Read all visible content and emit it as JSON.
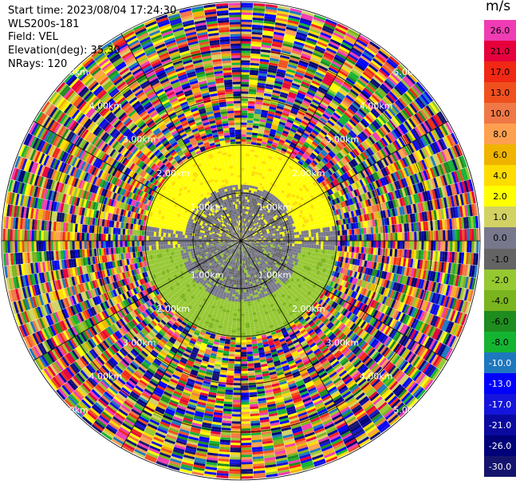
{
  "info": {
    "start_time": "Start time: 2023/08/04 17:24:30",
    "site": "WLS200s-181",
    "field": "Field: VEL",
    "elevation": "Elevation(deg): 35.30",
    "nrays": "NRays: 120"
  },
  "chart_data": {
    "type": "polar-ppi",
    "field": "VEL",
    "n_rays": 120,
    "range_rings_km": [
      1.0,
      2.0,
      3.0,
      4.0,
      5.0
    ],
    "ring_labels": [
      "1.00km",
      "2.00km",
      "3.00km",
      "4.00km",
      "5.00km"
    ],
    "valid_data_max_range_km": 2.0,
    "colorbar": {
      "unit": "m/s",
      "levels": [
        {
          "label": "26.0",
          "color": "#f03cb4"
        },
        {
          "label": "21.0",
          "color": "#e6003c"
        },
        {
          "label": "17.0",
          "color": "#f02814"
        },
        {
          "label": "13.0",
          "color": "#f0501e"
        },
        {
          "label": "10.0",
          "color": "#f07846"
        },
        {
          "label": "8.0",
          "color": "#ffa050"
        },
        {
          "label": "6.0",
          "color": "#f0b400"
        },
        {
          "label": "4.0",
          "color": "#ffdc00"
        },
        {
          "label": "2.0",
          "color": "#ffff00"
        },
        {
          "label": "1.0",
          "color": "#d2d264"
        },
        {
          "label": "0.0",
          "color": "#78788c"
        },
        {
          "label": "-1.0",
          "color": "#646464"
        },
        {
          "label": "-2.0",
          "color": "#96c832"
        },
        {
          "label": "-4.0",
          "color": "#7ab41e"
        },
        {
          "label": "-6.0",
          "color": "#1e8c1e"
        },
        {
          "label": "-8.0",
          "color": "#14b432"
        },
        {
          "label": "-10.0",
          "color": "#1e78be"
        },
        {
          "label": "-13.0",
          "color": "#0000ff"
        },
        {
          "label": "-17.0",
          "color": "#1414dc"
        },
        {
          "label": "-21.0",
          "color": "#0a0aa0"
        },
        {
          "label": "-26.0",
          "color": "#000078"
        },
        {
          "label": "-30.0",
          "color": "#14146e"
        }
      ]
    }
  }
}
